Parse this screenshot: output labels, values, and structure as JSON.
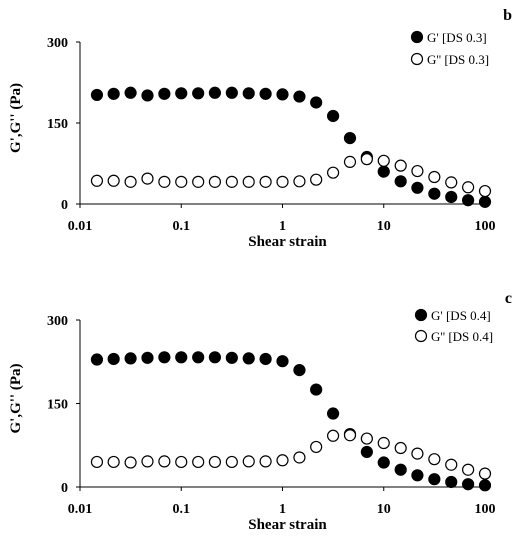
{
  "chart_data": [
    {
      "type": "scatter",
      "panel_label": "b",
      "xlabel": "Shear strain",
      "ylabel": "G',G'' (Pa)",
      "x_scale": "log",
      "xlim": [
        0.01,
        100
      ],
      "ylim": [
        0,
        300
      ],
      "x_ticks": [
        "0.01",
        "0.1",
        "1",
        "10",
        "100"
      ],
      "y_ticks": [
        "0",
        "150",
        "300"
      ],
      "legend_position": "top-right",
      "x": [
        0.0147,
        0.0215,
        0.0316,
        0.0464,
        0.0681,
        0.1,
        0.147,
        0.215,
        0.316,
        0.464,
        0.681,
        1.0,
        1.47,
        2.15,
        3.16,
        4.64,
        6.81,
        10.0,
        14.7,
        21.5,
        31.6,
        46.4,
        68.1,
        100.0
      ],
      "series": [
        {
          "name": "G' [DS 0.3]",
          "marker": "filled-circle",
          "values": [
            202,
            204,
            206,
            201,
            204,
            205,
            205,
            206,
            206,
            205,
            204,
            203,
            199,
            188,
            163,
            122,
            87,
            60,
            42,
            30,
            19,
            13,
            7,
            4
          ]
        },
        {
          "name": "G'' [DS 0.3]",
          "marker": "open-circle",
          "values": [
            43,
            43,
            41,
            47,
            41,
            41,
            41,
            41,
            41,
            41,
            41,
            41,
            42,
            45,
            58,
            78,
            83,
            80,
            71,
            61,
            50,
            40,
            31,
            24
          ]
        }
      ]
    },
    {
      "type": "scatter",
      "panel_label": "c",
      "xlabel": "Shear strain",
      "ylabel": "G',G'' (Pa)",
      "x_scale": "log",
      "xlim": [
        0.01,
        100
      ],
      "ylim": [
        0,
        300
      ],
      "x_ticks": [
        "0.01",
        "0.1",
        "1",
        "10",
        "100"
      ],
      "y_ticks": [
        "0",
        "150",
        "300"
      ],
      "legend_position": "top-right",
      "x": [
        0.0147,
        0.0215,
        0.0316,
        0.0464,
        0.0681,
        0.1,
        0.147,
        0.215,
        0.316,
        0.464,
        0.681,
        1.0,
        1.47,
        2.15,
        3.16,
        4.64,
        6.81,
        10.0,
        14.7,
        21.5,
        31.6,
        46.4,
        68.1,
        100.0
      ],
      "series": [
        {
          "name": "G' [DS 0.4]",
          "marker": "filled-circle",
          "values": [
            229,
            230,
            231,
            232,
            233,
            233,
            233,
            233,
            232,
            231,
            230,
            226,
            210,
            175,
            132,
            95,
            63,
            44,
            31,
            21,
            14,
            9,
            5,
            3
          ]
        },
        {
          "name": "G'' [DS 0.4]",
          "marker": "open-circle",
          "values": [
            45,
            45,
            44,
            46,
            46,
            45,
            45,
            45,
            45,
            46,
            46,
            48,
            53,
            72,
            92,
            93,
            87,
            79,
            70,
            60,
            50,
            40,
            31,
            24
          ]
        }
      ]
    }
  ]
}
